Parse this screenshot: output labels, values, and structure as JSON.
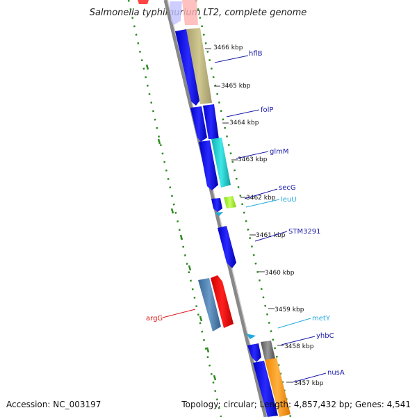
{
  "title": "Salmonella typhimurium LT2, complete genome",
  "accession": "Accession: NC_003197",
  "topology": "Topology: circular; Length: 4,857,432 bp; Genes: 4,541",
  "colors": {
    "backbone": "#888888",
    "gc_track": "#2e8b22",
    "gene_blue": "#1010e8",
    "gene_red": "#ff1010",
    "label_blue": "#1a1aa8",
    "label_cyan": "#22aadd",
    "label_red": "#dd1010"
  },
  "kbp_ticks": [
    {
      "label": "3466 kbp"
    },
    {
      "label": "3465 kbp"
    },
    {
      "label": "3464 kbp"
    },
    {
      "label": "3463 kbp"
    },
    {
      "label": "3462 kbp"
    },
    {
      "label": "3461 kbp"
    },
    {
      "label": "3460 kbp"
    },
    {
      "label": "3459 kbp"
    },
    {
      "label": "3458 kbp"
    },
    {
      "label": "3457 kbp"
    }
  ],
  "gene_labels": [
    {
      "name": "hflB",
      "color": "blue"
    },
    {
      "name": "folP",
      "color": "blue"
    },
    {
      "name": "glmM",
      "color": "blue"
    },
    {
      "name": "secG",
      "color": "blue"
    },
    {
      "name": "leuU",
      "color": "cyan"
    },
    {
      "name": "STM3291",
      "color": "blue"
    },
    {
      "name": "argG",
      "color": "red"
    },
    {
      "name": "metY",
      "color": "cyan"
    },
    {
      "name": "yhbC",
      "color": "blue"
    },
    {
      "name": "nusA",
      "color": "blue"
    }
  ]
}
